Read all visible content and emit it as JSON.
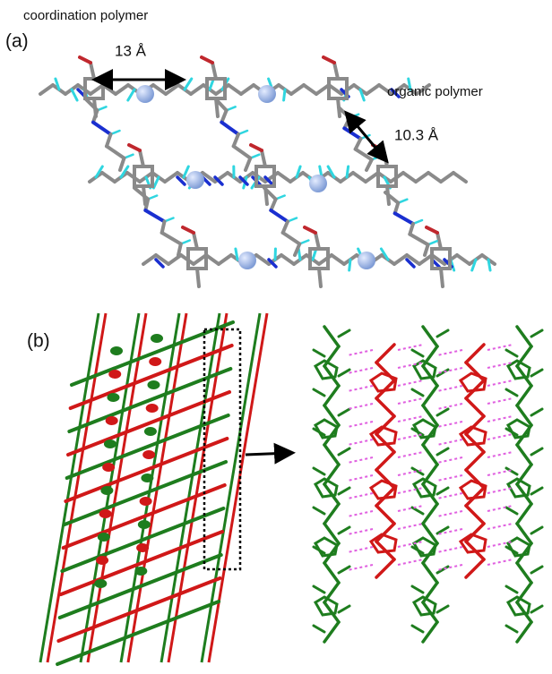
{
  "panel_a": {
    "label": "(a)",
    "coordination_label": "coordination polymer",
    "coordination_distance": "13 Å",
    "organic_label": "organic polymer",
    "organic_distance": "10.3 Å"
  },
  "panel_b": {
    "label": "(b)"
  }
}
